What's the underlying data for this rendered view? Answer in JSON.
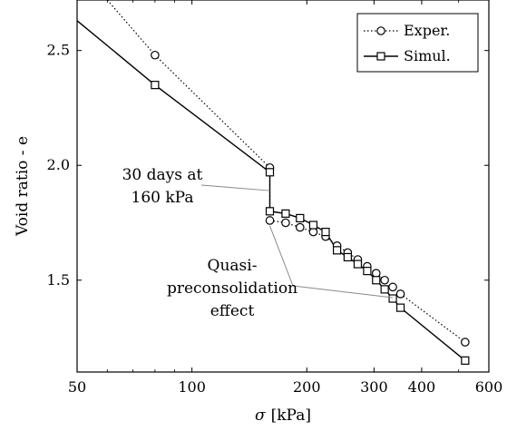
{
  "chart_data": {
    "type": "line",
    "xlabel_symbol": "σ",
    "xlabel_unit": "[kPa]",
    "ylabel": "Void ratio - e",
    "xscale": "log",
    "xlim": [
      50,
      600
    ],
    "ylim": [
      1.1,
      2.72
    ],
    "xticks": [
      50,
      100,
      200,
      300,
      400,
      600
    ],
    "xtick_labels": [
      "50",
      "100",
      "200",
      "300",
      "400",
      "600"
    ],
    "yticks": [
      1.5,
      2.0,
      2.5
    ],
    "ytick_labels": [
      "1.5",
      "2.0",
      "2.5"
    ],
    "grid": false,
    "legend_position": "top-right",
    "series": [
      {
        "name": "Exper.",
        "style": "dotted",
        "marker": "circle",
        "line_start": {
          "x": 60,
          "y": 2.72
        },
        "points": [
          {
            "x": 80,
            "y": 2.48
          },
          {
            "x": 160,
            "y": 1.99
          },
          {
            "x": 160,
            "y": 1.76
          },
          {
            "x": 176,
            "y": 1.75
          },
          {
            "x": 192,
            "y": 1.73
          },
          {
            "x": 208,
            "y": 1.71
          },
          {
            "x": 224,
            "y": 1.69
          },
          {
            "x": 240,
            "y": 1.65
          },
          {
            "x": 256,
            "y": 1.62
          },
          {
            "x": 272,
            "y": 1.59
          },
          {
            "x": 288,
            "y": 1.56
          },
          {
            "x": 304,
            "y": 1.53
          },
          {
            "x": 320,
            "y": 1.5
          },
          {
            "x": 336,
            "y": 1.47
          },
          {
            "x": 352,
            "y": 1.44
          },
          {
            "x": 520,
            "y": 1.23
          }
        ]
      },
      {
        "name": "Simul.",
        "style": "solid",
        "marker": "square",
        "line_start": {
          "x": 50,
          "y": 2.63
        },
        "points": [
          {
            "x": 80,
            "y": 2.35
          },
          {
            "x": 160,
            "y": 1.97
          },
          {
            "x": 160,
            "y": 1.8
          },
          {
            "x": 176,
            "y": 1.79
          },
          {
            "x": 192,
            "y": 1.77
          },
          {
            "x": 208,
            "y": 1.74
          },
          {
            "x": 224,
            "y": 1.71
          },
          {
            "x": 240,
            "y": 1.63
          },
          {
            "x": 256,
            "y": 1.6
          },
          {
            "x": 272,
            "y": 1.57
          },
          {
            "x": 288,
            "y": 1.54
          },
          {
            "x": 304,
            "y": 1.5
          },
          {
            "x": 320,
            "y": 1.46
          },
          {
            "x": 336,
            "y": 1.42
          },
          {
            "x": 352,
            "y": 1.38
          },
          {
            "x": 520,
            "y": 1.15
          }
        ]
      }
    ],
    "annotations": [
      {
        "lines": [
          "30 days at",
          "160 kPa"
        ],
        "target": {
          "x": 160,
          "y": 1.89
        }
      },
      {
        "lines": [
          "Quasi-",
          "preconsolidation",
          "effect"
        ],
        "targets": [
          {
            "x": 160,
            "y": 1.76
          },
          {
            "x": 336,
            "y": 1.44
          }
        ]
      }
    ]
  }
}
